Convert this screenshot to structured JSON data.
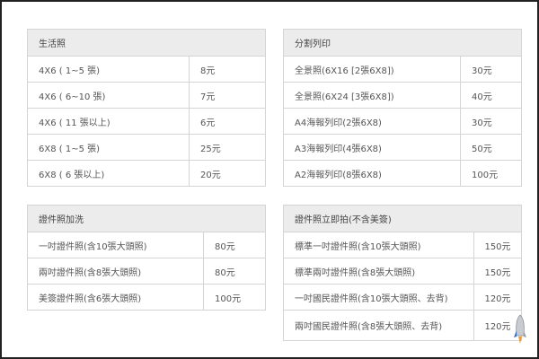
{
  "tables": [
    {
      "title": "生活照",
      "rows": [
        {
          "item": "4X6 ( 1~5 張)",
          "price": "8元"
        },
        {
          "item": "4X6 ( 6~10 張)",
          "price": "7元"
        },
        {
          "item": "4X6 ( 11 張以上)",
          "price": "6元"
        },
        {
          "item": "6X8 ( 1~5 張)",
          "price": "25元"
        },
        {
          "item": "6X8 ( 6 張以上)",
          "price": "20元"
        }
      ]
    },
    {
      "title": "分割列印",
      "rows": [
        {
          "item": "全景照(6X16 [2張6X8])",
          "price": "30元"
        },
        {
          "item": "全景照(6X24 [3張6X8])",
          "price": "40元"
        },
        {
          "item": "A4海報列印(2張6X8)",
          "price": "30元"
        },
        {
          "item": "A3海報列印(4張6X8)",
          "price": "50元"
        },
        {
          "item": "A2海報列印(8張6X8)",
          "price": "100元"
        }
      ]
    },
    {
      "title": "證件照加洗",
      "rows": [
        {
          "item": "一吋證件照(含10張大頭照)",
          "price": "80元"
        },
        {
          "item": "兩吋證件照(含8張大頭照)",
          "price": "80元"
        },
        {
          "item": "美簽證件照(含6張大頭照)",
          "price": "100元"
        }
      ]
    },
    {
      "title": "證件照立即拍(不含美簽)",
      "rows": [
        {
          "item": "標準一吋證件照(含10張大頭照)",
          "price": "150元"
        },
        {
          "item": "標準兩吋證件照(含8張大頭照)",
          "price": "150元"
        },
        {
          "item": "一吋國民證件照(含10張大頭照、去背)",
          "price": "120元"
        },
        {
          "item": "兩吋國民證件照(含8張大頭照、去背)",
          "price": "120元"
        }
      ]
    }
  ],
  "icons": {
    "back_to_top": "rocket-icon"
  }
}
